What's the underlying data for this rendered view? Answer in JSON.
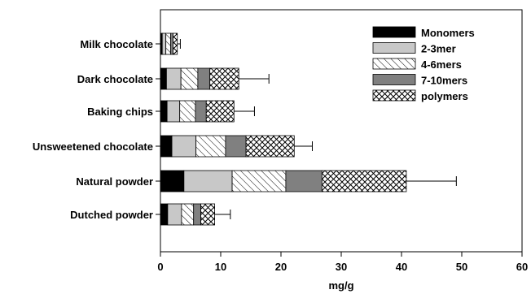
{
  "chart_data": {
    "type": "bar",
    "orientation": "horizontal",
    "stacked": true,
    "title": "",
    "xlabel": "mg/g",
    "ylabel": "",
    "xlim": [
      0,
      60
    ],
    "xticks": [
      0,
      10,
      20,
      30,
      40,
      50,
      60
    ],
    "grid": false,
    "legend_position": "top-right",
    "categories": [
      "Milk chocolate",
      "Dark chocolate",
      "Baking chips",
      "Unsweetened chocolate",
      "Natural powder",
      "Dutched powder"
    ],
    "series": [
      {
        "name": "Monomers",
        "pattern": "solid-black",
        "values": [
          0.3,
          1.0,
          1.1,
          1.9,
          3.9,
          1.2
        ]
      },
      {
        "name": "2-3mer",
        "pattern": "solid-lightgray",
        "values": [
          0.6,
          2.4,
          2.1,
          4.0,
          8.0,
          2.3
        ]
      },
      {
        "name": "4-6mers",
        "pattern": "diagonal-hatch",
        "values": [
          0.8,
          2.8,
          2.6,
          4.9,
          8.9,
          2.0
        ]
      },
      {
        "name": "7-10mers",
        "pattern": "solid-darkgray",
        "values": [
          0.4,
          2.0,
          1.8,
          3.4,
          6.0,
          1.2
        ]
      },
      {
        "name": "polymers",
        "pattern": "crosshatch",
        "values": [
          0.7,
          4.8,
          4.6,
          8.0,
          14.0,
          2.3
        ]
      }
    ],
    "error_bars": [
      0.5,
      5.0,
      3.4,
      3.0,
      8.3,
      2.6
    ],
    "colors": {
      "monomers": "#000000",
      "dimers": "#c8c8c8",
      "oligomers_7_10": "#808080",
      "hatch_bg": "#ffffff",
      "stroke": "#000000"
    }
  }
}
